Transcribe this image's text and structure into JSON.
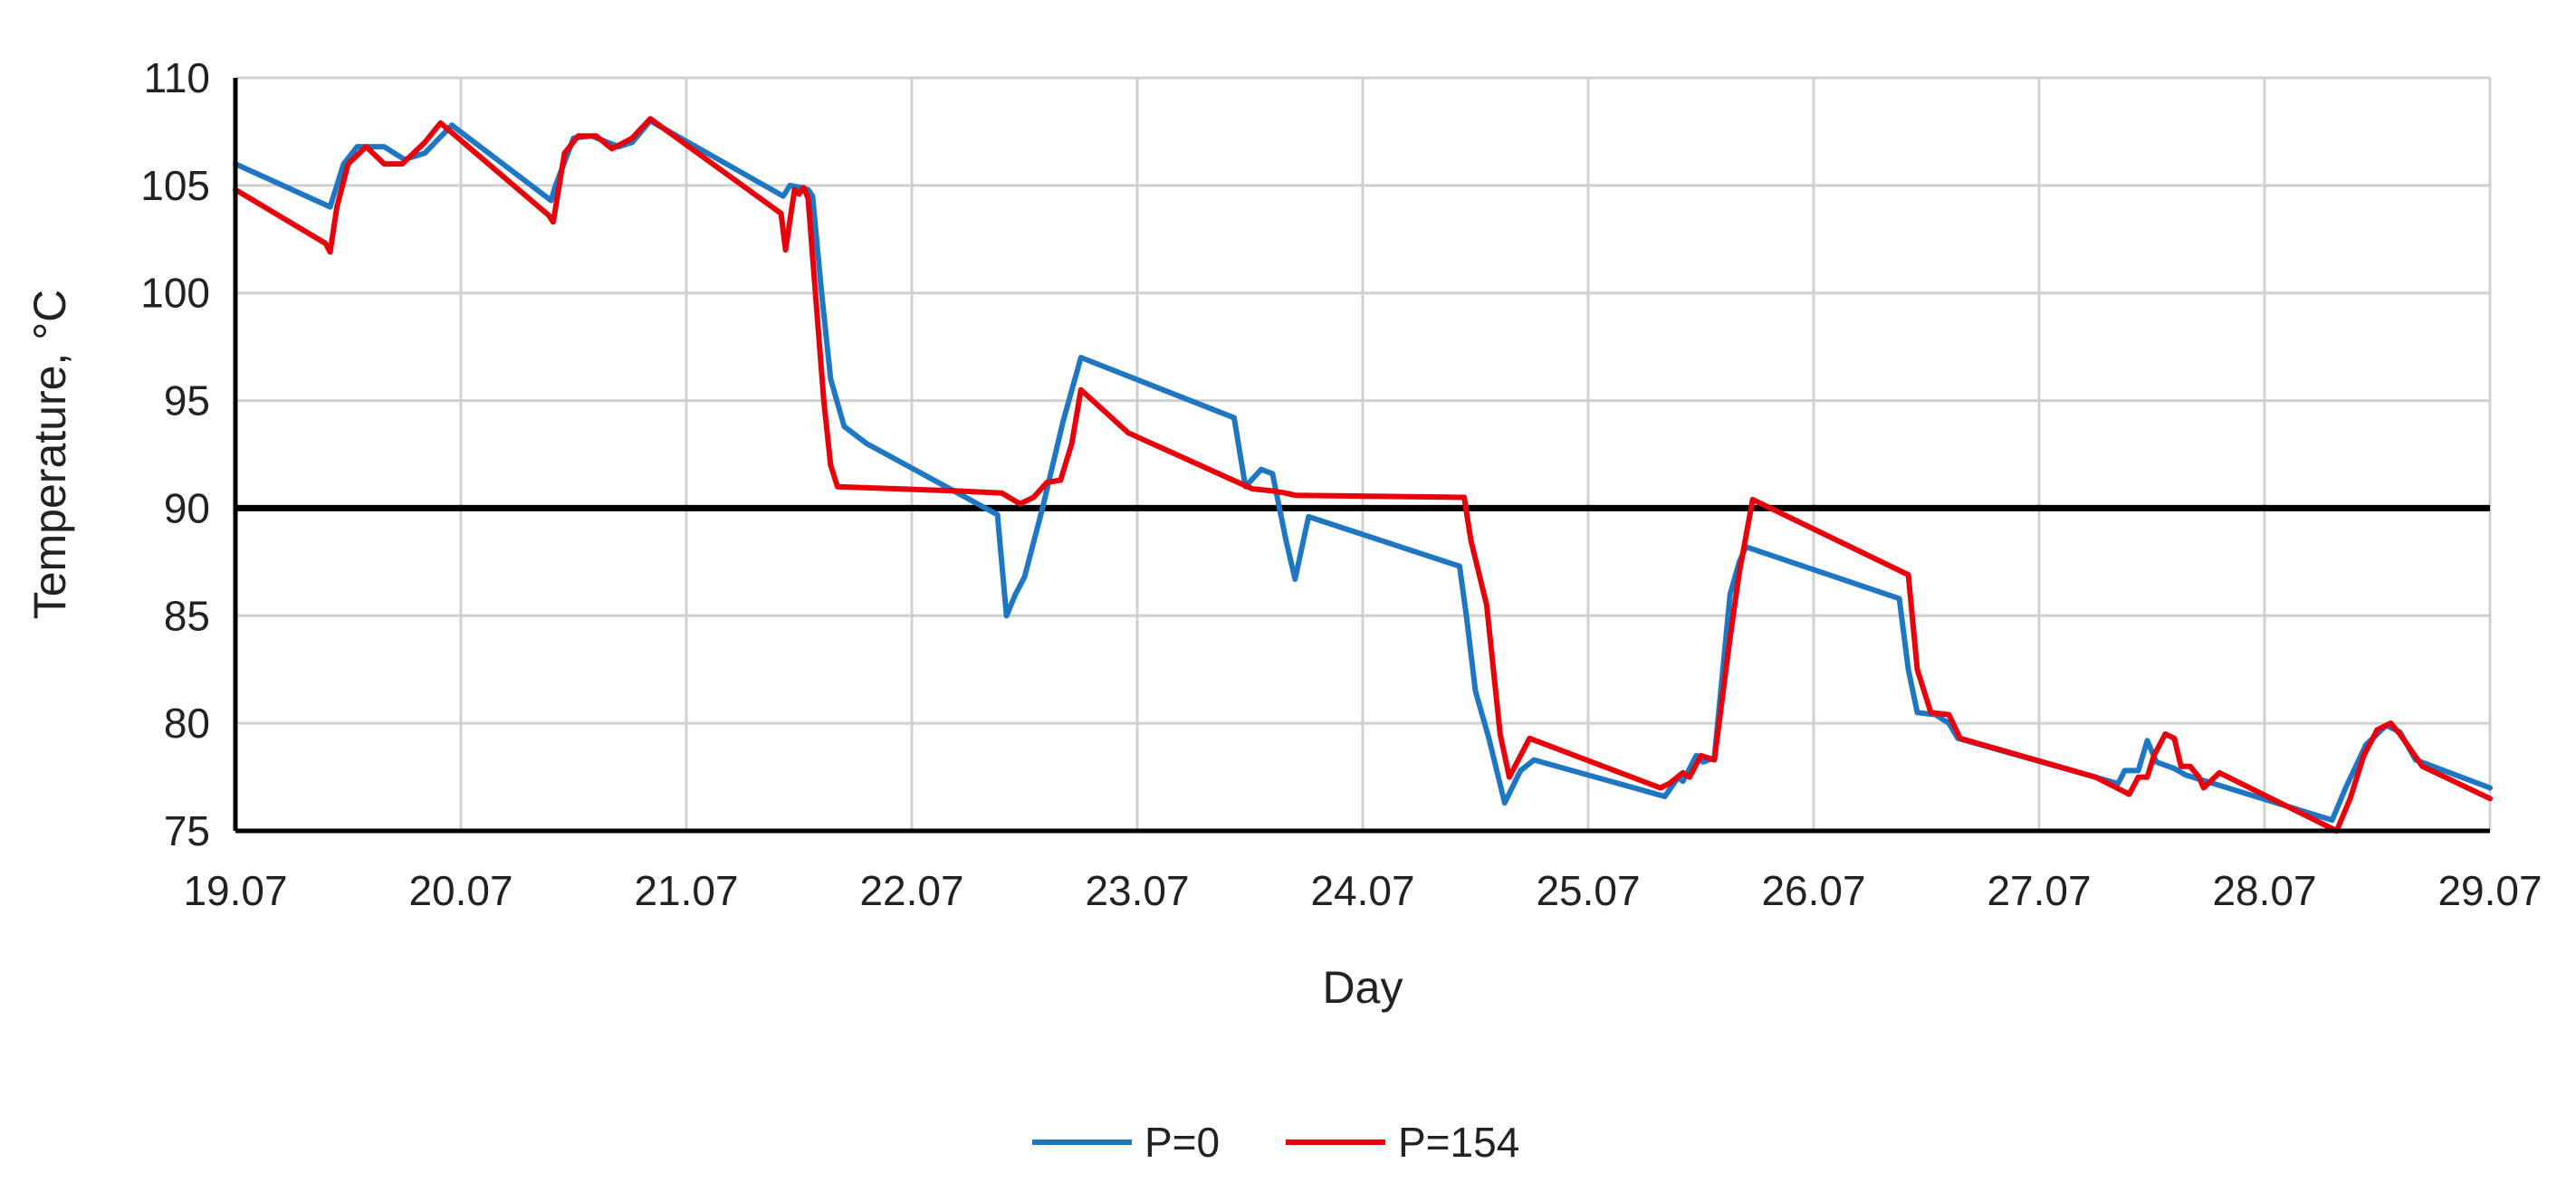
{
  "chart_data": {
    "type": "line",
    "title": "",
    "xlabel": "Day",
    "ylabel": "Temperature, °C",
    "x_ticks": [
      "19.07",
      "20.07",
      "21.07",
      "22.07",
      "23.07",
      "24.07",
      "25.07",
      "26.07",
      "27.07",
      "28.07",
      "29.07"
    ],
    "xlim": [
      "19.07",
      "29.07"
    ],
    "ylim": [
      75,
      110
    ],
    "y_ticks": [
      75,
      80,
      85,
      90,
      95,
      100,
      105,
      110
    ],
    "grid": true,
    "legend_position": "bottom",
    "reference_line": {
      "y": 90,
      "color": "#000000"
    },
    "series": [
      {
        "name": "P=0",
        "color": "#1f77c4",
        "points": [
          [
            "19.07 00:00",
            106.0
          ],
          [
            "19.07 10:05",
            104.0
          ],
          [
            "19.07 11:31",
            106.0
          ],
          [
            "19.07 12:58",
            106.8
          ],
          [
            "19.07 15:50",
            106.8
          ],
          [
            "19.07 18:00",
            106.2
          ],
          [
            "19.07 20:10",
            106.5
          ],
          [
            "19.07 23:02",
            107.8
          ],
          [
            "20.07 09:36",
            104.3
          ],
          [
            "20.07 10:05",
            105.0
          ],
          [
            "20.07 12:00",
            107.2
          ],
          [
            "20.07 13:55",
            107.3
          ],
          [
            "20.07 16:48",
            106.8
          ],
          [
            "20.07 18:14",
            107.0
          ],
          [
            "20.07 20:10",
            108.0
          ],
          [
            "21.07 10:19",
            104.5
          ],
          [
            "21.07 11:02",
            105.0
          ],
          [
            "21.07 12:14",
            104.9
          ],
          [
            "21.07 12:58",
            104.8
          ],
          [
            "21.07 13:26",
            104.5
          ],
          [
            "21.07 14:24",
            100.0
          ],
          [
            "21.07 15:22",
            96.0
          ],
          [
            "21.07 16:48",
            93.8
          ],
          [
            "21.07 19:12",
            93.0
          ],
          [
            "22.07 09:07",
            89.7
          ],
          [
            "22.07 10:05",
            85.0
          ],
          [
            "22.07 11:02",
            86.0
          ],
          [
            "22.07 12:00",
            86.8
          ],
          [
            "22.07 13:55",
            90.0
          ],
          [
            "22.07 16:05",
            94.0
          ],
          [
            "22.07 18:00",
            97.0
          ],
          [
            "23.07 10:19",
            94.2
          ],
          [
            "23.07 11:31",
            91.0
          ],
          [
            "23.07 13:12",
            91.8
          ],
          [
            "23.07 14:24",
            91.6
          ],
          [
            "23.07 15:50",
            88.5
          ],
          [
            "23.07 16:48",
            86.7
          ],
          [
            "23.07 18:14",
            89.6
          ],
          [
            "24.07 10:19",
            87.3
          ],
          [
            "24.07 11:02",
            85.0
          ],
          [
            "24.07 12:00",
            81.5
          ],
          [
            "24.07 13:26",
            79.3
          ],
          [
            "24.07 15:07",
            76.3
          ],
          [
            "24.07 16:48",
            77.8
          ],
          [
            "24.07 18:14",
            78.3
          ],
          [
            "25.07 08:10",
            76.6
          ],
          [
            "25.07 09:36",
            77.5
          ],
          [
            "25.07 10:05",
            77.3
          ],
          [
            "25.07 11:31",
            78.5
          ],
          [
            "25.07 12:14",
            78.2
          ],
          [
            "25.07 13:26",
            78.4
          ],
          [
            "25.07 15:07",
            86.0
          ],
          [
            "25.07 16:05",
            87.5
          ],
          [
            "25.07 16:48",
            88.2
          ],
          [
            "26.07 09:07",
            85.8
          ],
          [
            "26.07 10:05",
            82.5
          ],
          [
            "26.07 11:02",
            80.5
          ],
          [
            "26.07 12:58",
            80.4
          ],
          [
            "26.07 14:24",
            80.0
          ],
          [
            "26.07 15:22",
            79.3
          ],
          [
            "27.07 08:24",
            77.2
          ],
          [
            "27.07 09:07",
            77.8
          ],
          [
            "27.07 10:34",
            77.8
          ],
          [
            "27.07 11:31",
            79.2
          ],
          [
            "27.07 12:29",
            78.2
          ],
          [
            "27.07 14:24",
            77.9
          ],
          [
            "27.07 15:36",
            77.6
          ],
          [
            "28.07 07:12",
            75.5
          ],
          [
            "28.07 08:38",
            77.0
          ],
          [
            "28.07 10:48",
            79.0
          ],
          [
            "28.07 12:58",
            79.9
          ],
          [
            "28.07 14:24",
            79.6
          ],
          [
            "28.07 16:05",
            78.3
          ],
          [
            "29.07 00:00",
            77.0
          ]
        ]
      },
      {
        "name": "P=154",
        "color": "#e8000b",
        "points": [
          [
            "19.07 00:00",
            104.8
          ],
          [
            "19.07 09:36",
            102.3
          ],
          [
            "19.07 10:05",
            101.9
          ],
          [
            "19.07 10:48",
            104.0
          ],
          [
            "19.07 12:00",
            106.0
          ],
          [
            "19.07 13:55",
            106.8
          ],
          [
            "19.07 15:50",
            106.0
          ],
          [
            "19.07 17:46",
            106.0
          ],
          [
            "19.07 20:10",
            107.0
          ],
          [
            "19.07 21:50",
            107.9
          ],
          [
            "20.07 09:22",
            103.6
          ],
          [
            "20.07 09:50",
            103.3
          ],
          [
            "20.07 11:02",
            106.5
          ],
          [
            "20.07 12:29",
            107.3
          ],
          [
            "20.07 14:24",
            107.3
          ],
          [
            "20.07 16:05",
            106.7
          ],
          [
            "20.07 18:14",
            107.2
          ],
          [
            "20.07 20:10",
            108.1
          ],
          [
            "21.07 10:05",
            103.7
          ],
          [
            "21.07 10:34",
            102.0
          ],
          [
            "21.07 11:31",
            104.8
          ],
          [
            "21.07 12:00",
            104.6
          ],
          [
            "21.07 12:29",
            104.9
          ],
          [
            "21.07 12:58",
            104.4
          ],
          [
            "21.07 13:55",
            99.0
          ],
          [
            "21.07 14:38",
            95.0
          ],
          [
            "21.07 15:22",
            92.0
          ],
          [
            "21.07 16:05",
            91.0
          ],
          [
            "22.07 04:48",
            90.8
          ],
          [
            "22.07 09:36",
            90.7
          ],
          [
            "22.07 11:31",
            90.2
          ],
          [
            "22.07 12:58",
            90.5
          ],
          [
            "22.07 14:24",
            91.2
          ],
          [
            "22.07 15:50",
            91.3
          ],
          [
            "22.07 17:02",
            93.0
          ],
          [
            "22.07 18:00",
            95.5
          ],
          [
            "22.07 23:02",
            93.5
          ],
          [
            "23.07 12:14",
            90.9
          ],
          [
            "23.07 14:24",
            90.8
          ],
          [
            "23.07 15:50",
            90.7
          ],
          [
            "23.07 16:48",
            90.6
          ],
          [
            "24.07 10:48",
            90.5
          ],
          [
            "24.07 11:31",
            88.5
          ],
          [
            "24.07 13:12",
            85.5
          ],
          [
            "24.07 14:38",
            79.5
          ],
          [
            "24.07 15:36",
            77.5
          ],
          [
            "24.07 17:46",
            79.3
          ],
          [
            "25.07 07:41",
            77.0
          ],
          [
            "25.07 08:38",
            77.2
          ],
          [
            "25.07 10:05",
            77.7
          ],
          [
            "25.07 10:48",
            77.5
          ],
          [
            "25.07 12:00",
            78.5
          ],
          [
            "25.07 13:26",
            78.3
          ],
          [
            "25.07 15:07",
            84.0
          ],
          [
            "25.07 16:05",
            87.0
          ],
          [
            "25.07 17:31",
            90.4
          ],
          [
            "26.07 10:05",
            86.9
          ],
          [
            "26.07 11:02",
            82.5
          ],
          [
            "26.07 12:29",
            80.5
          ],
          [
            "26.07 14:24",
            80.4
          ],
          [
            "26.07 15:36",
            79.3
          ],
          [
            "27.07 06:00",
            77.5
          ],
          [
            "27.07 09:36",
            76.7
          ],
          [
            "27.07 10:34",
            77.5
          ],
          [
            "27.07 11:31",
            77.5
          ],
          [
            "27.07 12:14",
            78.5
          ],
          [
            "27.07 13:26",
            79.5
          ],
          [
            "27.07 14:24",
            79.3
          ],
          [
            "27.07 15:07",
            78.0
          ],
          [
            "27.07 16:05",
            78.0
          ],
          [
            "27.07 17:02",
            77.5
          ],
          [
            "27.07 17:31",
            77.0
          ],
          [
            "27.07 19:12",
            77.7
          ],
          [
            "28.07 07:41",
            75.0
          ],
          [
            "28.07 09:07",
            76.5
          ],
          [
            "28.07 10:34",
            78.5
          ],
          [
            "28.07 12:00",
            79.7
          ],
          [
            "28.07 13:26",
            80.0
          ],
          [
            "28.07 14:24",
            79.5
          ],
          [
            "28.07 16:48",
            78.0
          ],
          [
            "29.07 00:00",
            76.5
          ]
        ]
      }
    ]
  }
}
